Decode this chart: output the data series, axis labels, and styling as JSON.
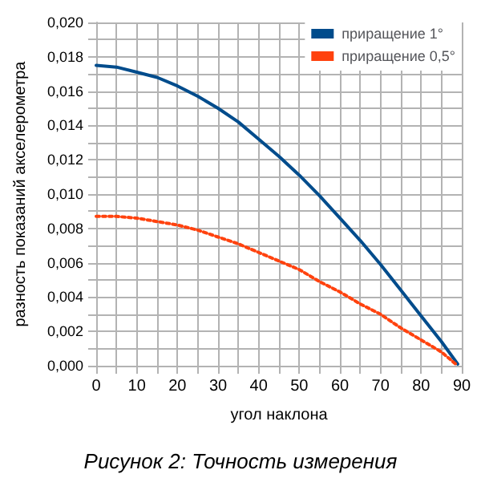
{
  "chart_data": {
    "type": "line",
    "xlabel": "угол наклона",
    "ylabel": "разность показаний акселерометра",
    "annotations": [
      "Рисунок 2: Точность измерения"
    ],
    "series": [
      {
        "name": "приращение 1°",
        "color": "#004c8c",
        "line_style": "solid",
        "x": [
          0,
          5,
          10,
          15,
          20,
          25,
          30,
          35,
          40,
          45,
          50,
          55,
          60,
          65,
          70,
          75,
          80,
          85,
          89
        ],
        "values": [
          0.0175,
          0.0174,
          0.0171,
          0.0168,
          0.0163,
          0.0157,
          0.015,
          0.0142,
          0.0132,
          0.0122,
          0.0111,
          0.0099,
          0.0086,
          0.0073,
          0.0059,
          0.0044,
          0.0029,
          0.0014,
          0.0001
        ]
      },
      {
        "name": "приращение 0,5°",
        "color": "#ff420e",
        "line_style": "dotted",
        "x": [
          0,
          5,
          10,
          15,
          20,
          25,
          30,
          35,
          40,
          45,
          50,
          55,
          60,
          65,
          70,
          75,
          80,
          85,
          89
        ],
        "values": [
          0.0087,
          0.0087,
          0.0086,
          0.0084,
          0.0082,
          0.0079,
          0.0075,
          0.0071,
          0.0066,
          0.0061,
          0.0056,
          0.0049,
          0.0043,
          0.0036,
          0.003,
          0.0022,
          0.0015,
          0.0008,
          0.0
        ]
      }
    ],
    "xlim": [
      0,
      90
    ],
    "xticks": [
      0,
      {
        "value": 5,
        "label": null
      },
      10,
      {
        "value": 15,
        "label": null
      },
      20,
      {
        "value": 25,
        "label": null
      },
      30,
      {
        "value": 35,
        "label": null
      },
      40,
      {
        "value": 45,
        "label": null
      },
      50,
      {
        "value": 55,
        "label": null
      },
      60,
      {
        "value": 65,
        "label": null
      },
      70,
      {
        "value": 75,
        "label": null
      },
      80,
      {
        "value": 85,
        "label": null
      },
      90
    ],
    "ylim": [
      0,
      0.02
    ],
    "yticks": [
      {
        "value": 0,
        "label": "0,000"
      },
      {
        "value": 0.001,
        "label": null
      },
      {
        "value": 0.002,
        "label": "0,002"
      },
      {
        "value": 0.003,
        "label": null
      },
      {
        "value": 0.004,
        "label": "0,004"
      },
      {
        "value": 0.005,
        "label": null
      },
      {
        "value": 0.006,
        "label": "0,006"
      },
      {
        "value": 0.007,
        "label": null
      },
      {
        "value": 0.008,
        "label": "0,008"
      },
      {
        "value": 0.009,
        "label": null
      },
      {
        "value": 0.01,
        "label": "0,010"
      },
      {
        "value": 0.011,
        "label": null
      },
      {
        "value": 0.012,
        "label": "0,012"
      },
      {
        "value": 0.013,
        "label": null
      },
      {
        "value": 0.014,
        "label": "0,014"
      },
      {
        "value": 0.015,
        "label": null
      },
      {
        "value": 0.016,
        "label": "0,016"
      },
      {
        "value": 0.017,
        "label": null
      },
      {
        "value": 0.018,
        "label": "0,018"
      },
      {
        "value": 0.019,
        "label": null
      },
      {
        "value": 0.02,
        "label": "0,020"
      }
    ],
    "grid": true,
    "legend": "top right",
    "marker": "none"
  }
}
